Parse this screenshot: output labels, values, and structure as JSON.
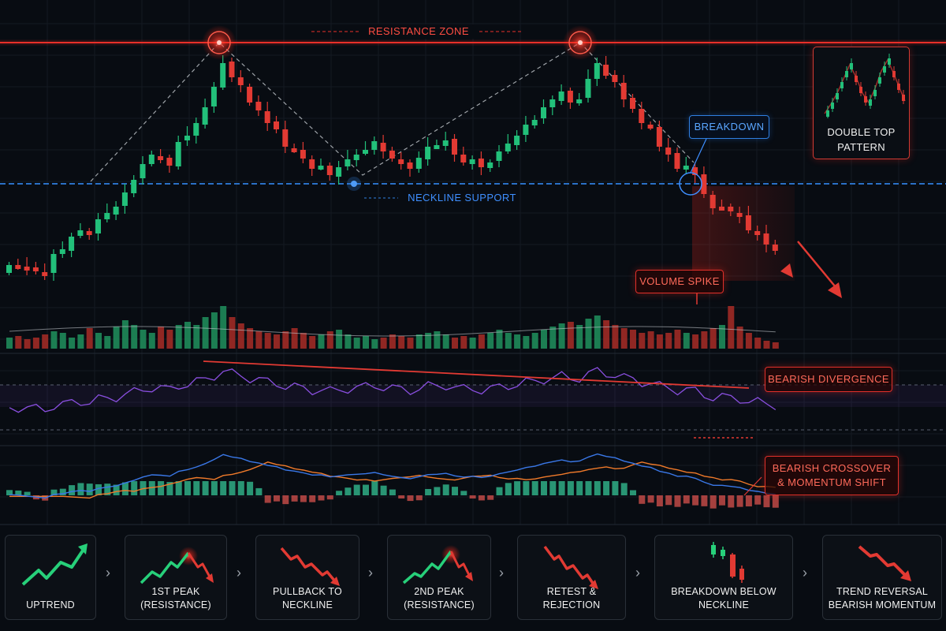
{
  "annotations": {
    "resistance_zone": "RESISTANCE ZONE",
    "neckline_support": "NECKLINE SUPPORT",
    "breakdown": "BREAKDOWN",
    "volume_spike": "VOLUME SPIKE",
    "bearish_divergence": "BEARISH DIVERGENCE",
    "bearish_crossover_line1": "BEARISH CROSSOVER",
    "bearish_crossover_line2": "& MOMENTUM SHIFT",
    "pattern_line1": "DOUBLE TOP",
    "pattern_line2": "PATTERN"
  },
  "steps": [
    {
      "line1": "UPTREND",
      "line2": "",
      "icon": "uptrend-arrow-icon"
    },
    {
      "line1": "1ST PEAK",
      "line2": "(RESISTANCE)",
      "icon": "first-peak-icon"
    },
    {
      "line1": "PULLBACK TO",
      "line2": "NECKLINE",
      "icon": "pullback-icon"
    },
    {
      "line1": "2ND PEAK",
      "line2": "(RESISTANCE)",
      "icon": "second-peak-icon"
    },
    {
      "line1": "RETEST & REJECTION",
      "line2": "",
      "icon": "retest-rejection-icon"
    },
    {
      "line1": "BREAKDOWN BELOW",
      "line2": "NECKLINE",
      "icon": "breakdown-candles-icon"
    },
    {
      "line1": "TREND REVERSAL",
      "line2": "BEARISH MOMENTUM",
      "icon": "reversal-arrow-icon"
    }
  ],
  "colors": {
    "bull": "#22c07a",
    "bear": "#e23a33",
    "resistance": "#e8302a",
    "neckline": "#2f7fe0",
    "rsi": "#8a4fe0",
    "macd": "#3a78e8",
    "signal": "#f07a2a",
    "background": "#080c12"
  },
  "chart_data": {
    "type": "candlestick",
    "pattern": "double-top",
    "closes": [
      336,
      336,
      340,
      344,
      348,
      322,
      316,
      300,
      292,
      298,
      278,
      270,
      262,
      244,
      228,
      208,
      196,
      201,
      210,
      180,
      172,
      156,
      136,
      110,
      80,
      98,
      108,
      130,
      140,
      156,
      164,
      186,
      191,
      201,
      214,
      210,
      222,
      212,
      202,
      196,
      190,
      179,
      192,
      201,
      208,
      214,
      200,
      186,
      184,
      178,
      196,
      206,
      202,
      212,
      206,
      192,
      182,
      172,
      158,
      152,
      136,
      126,
      116,
      130,
      126,
      100,
      80,
      96,
      104,
      126,
      138,
      156,
      162,
      186,
      196,
      214,
      210,
      222,
      246,
      264,
      262,
      268,
      274,
      292,
      298,
      310,
      318
    ],
    "volumes": [
      14,
      16,
      12,
      14,
      18,
      22,
      20,
      14,
      18,
      26,
      20,
      16,
      28,
      36,
      30,
      24,
      20,
      28,
      24,
      30,
      34,
      30,
      40,
      46,
      54,
      40,
      32,
      26,
      22,
      20,
      18,
      22,
      26,
      20,
      16,
      18,
      22,
      24,
      18,
      14,
      16,
      12,
      14,
      18,
      16,
      14,
      18,
      20,
      22,
      18,
      14,
      16,
      14,
      18,
      20,
      24,
      20,
      18,
      16,
      20,
      24,
      28,
      32,
      34,
      30,
      38,
      42,
      36,
      30,
      26,
      24,
      20,
      22,
      18,
      20,
      24,
      20,
      18,
      22,
      26,
      30,
      54,
      28,
      20,
      14,
      10,
      8
    ],
    "resistance_level": 54,
    "neckline_level": 233
  }
}
